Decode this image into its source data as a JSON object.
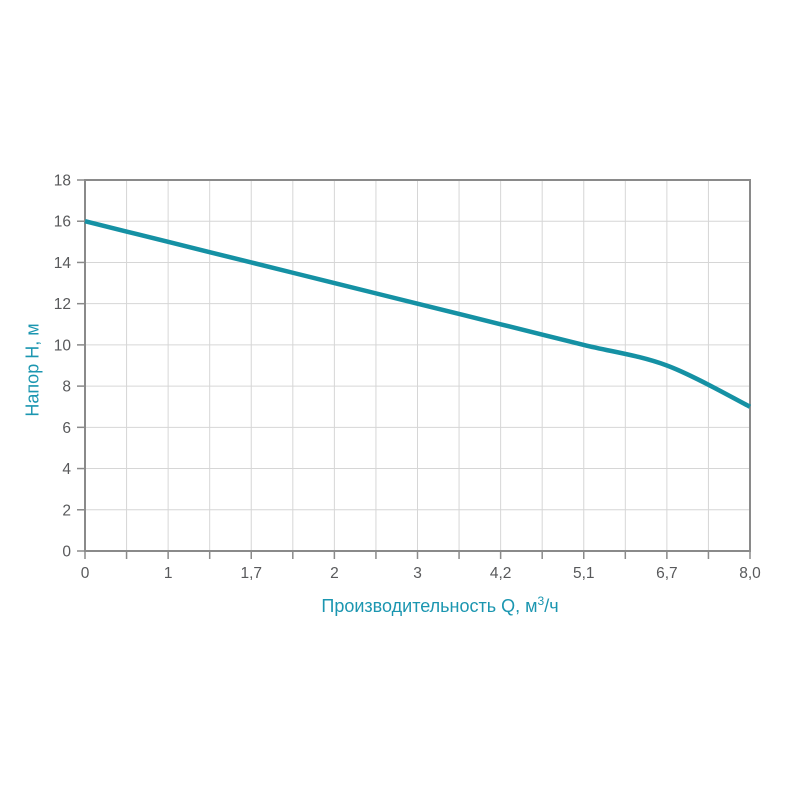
{
  "chart_data": {
    "type": "line",
    "title": "",
    "categories": [
      "0",
      "1",
      "1,7",
      "2",
      "3",
      "4,2",
      "5,1",
      "6,7",
      "8,0"
    ],
    "values": [
      16,
      15,
      14,
      13,
      12,
      11,
      10,
      9,
      7
    ],
    "series_name": "pump-head-curve",
    "xlabel": "Производительность Q, м³/ч",
    "xlabel_parts": {
      "base": "Производительность Q, м",
      "sup": "3",
      "after": "/ч"
    },
    "ylabel": "Напор H, м",
    "ylim": [
      0,
      18
    ],
    "yticks": [
      0,
      2,
      4,
      6,
      8,
      10,
      12,
      14,
      16,
      18
    ],
    "x_minor_divisions": 2,
    "grid": true,
    "legend": "none",
    "colors": {
      "line": "#1591A4",
      "axis_title": "#1B96B0",
      "tick_label": "#58595B",
      "spine": "#8A8A8A",
      "gridline": "#D6D6D6",
      "background": "#FFFFFF"
    }
  }
}
